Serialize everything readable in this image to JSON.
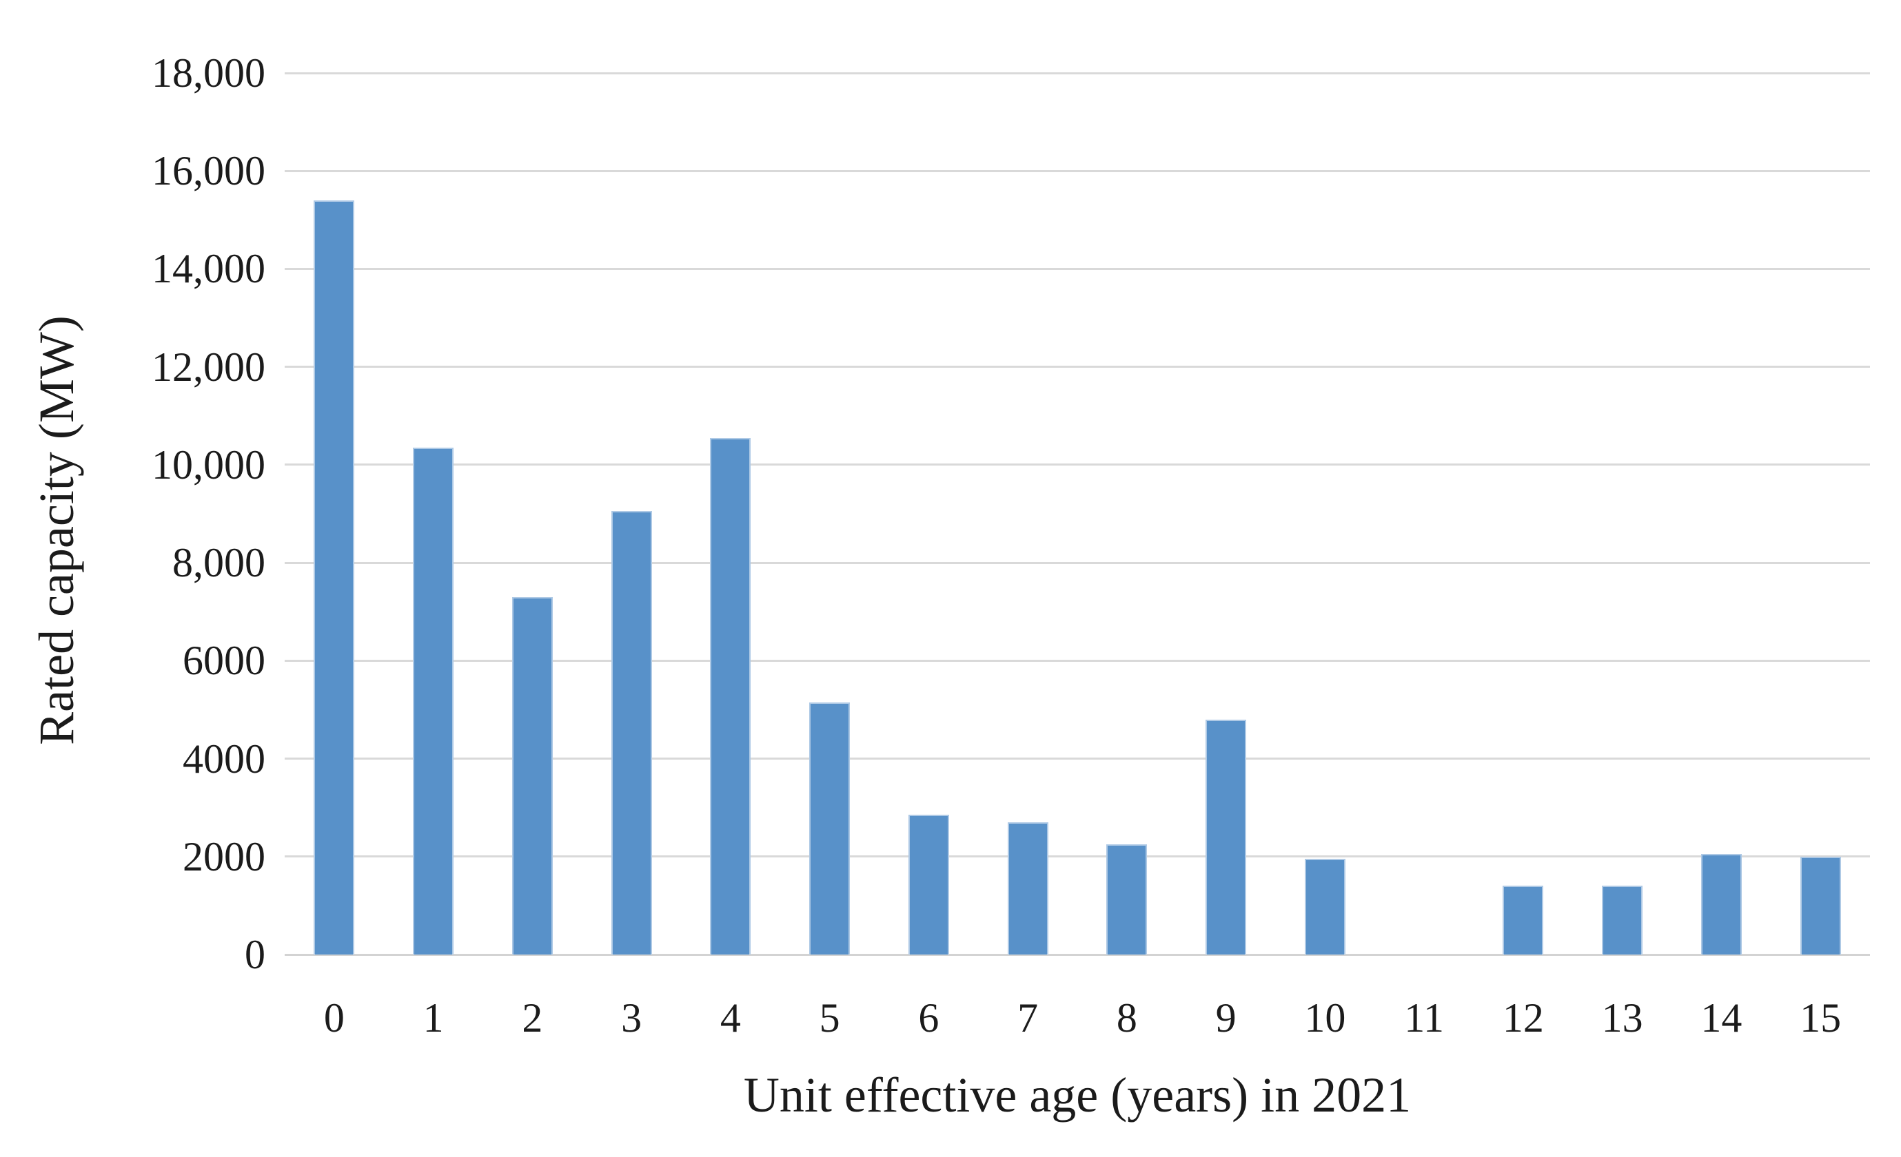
{
  "chart_data": {
    "type": "bar",
    "title": "",
    "xlabel": "Unit effective age (years) in 2021",
    "ylabel": "Rated capacity (MW)",
    "categories": [
      "0",
      "1",
      "2",
      "3",
      "4",
      "5",
      "6",
      "7",
      "8",
      "9",
      "10",
      "11",
      "12",
      "13",
      "14",
      "15"
    ],
    "values": [
      15400,
      10350,
      7300,
      9050,
      10550,
      5150,
      2850,
      2700,
      2250,
      4800,
      1950,
      0,
      1400,
      1400,
      2050,
      2000
    ],
    "ylim": [
      0,
      18000
    ],
    "ytick_step": 2000,
    "ytick_labels": [
      "0",
      "2000",
      "4000",
      "6000",
      "8,000",
      "10,000",
      "12,000",
      "14,000",
      "16,000",
      "18,000"
    ],
    "grid": "horizontal-only",
    "legend": "none",
    "colors": {
      "bar_fill": "#5891c9",
      "bar_edge": "#aec9e5",
      "gridline": "#d9d9d9",
      "text": "#1b1b1b",
      "background": "#ffffff"
    }
  }
}
